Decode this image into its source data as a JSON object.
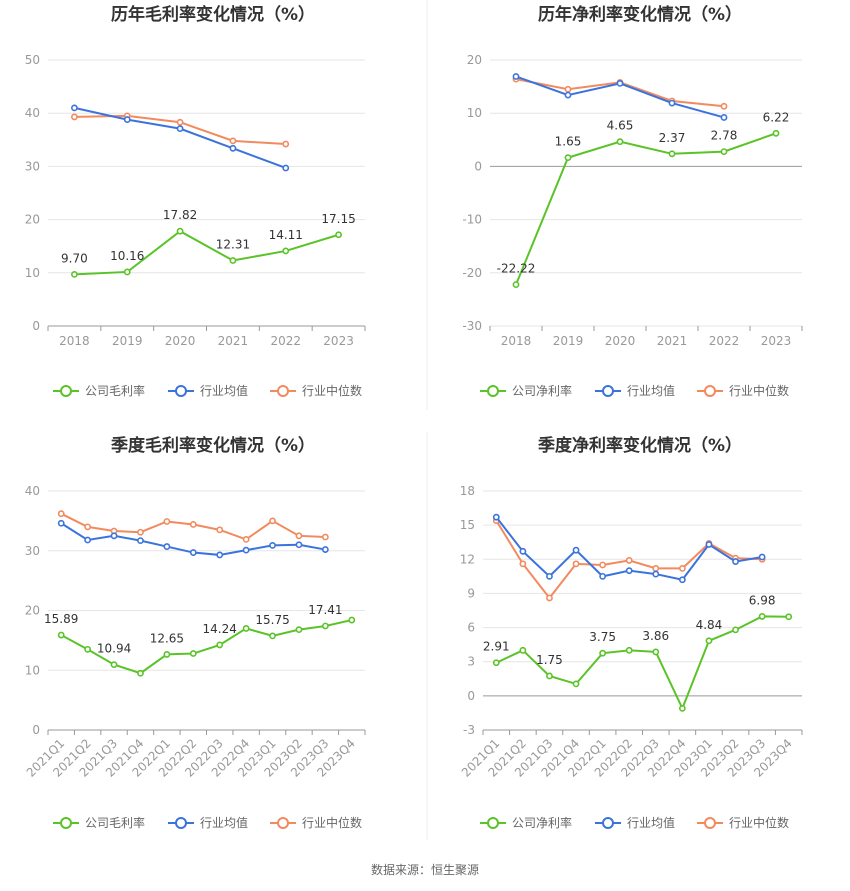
{
  "colors": {
    "company": "#5ac328",
    "industry_avg": "#3b73de",
    "industry_median": "#f28a5e",
    "grid": "#e6e6e6",
    "axis": "#cccccc"
  },
  "source_text": "数据来源：恒生聚源",
  "chart_data": [
    {
      "type": "line",
      "title": "历年毛利率变化情况（%）",
      "categories": [
        "2018",
        "2019",
        "2020",
        "2021",
        "2022",
        "2023"
      ],
      "ylim": [
        0,
        50
      ],
      "yticks": [
        0,
        10,
        20,
        30,
        40,
        50
      ],
      "legend_position": "bottom",
      "grid": true,
      "series": [
        {
          "name": "公司毛利率",
          "key": "company",
          "values": [
            9.7,
            10.16,
            17.82,
            12.31,
            14.11,
            17.15
          ],
          "labels": [
            "9.70",
            "10.16",
            "17.82",
            "12.31",
            "14.11",
            "17.15"
          ]
        },
        {
          "name": "行业均值",
          "key": "industry_avg",
          "values": [
            41.0,
            38.8,
            37.1,
            33.4,
            29.7,
            null
          ]
        },
        {
          "name": "行业中位数",
          "key": "industry_median",
          "values": [
            39.3,
            39.5,
            38.3,
            34.8,
            34.2,
            null
          ]
        }
      ]
    },
    {
      "type": "line",
      "title": "历年净利率变化情况（%）",
      "categories": [
        "2018",
        "2019",
        "2020",
        "2021",
        "2022",
        "2023"
      ],
      "ylim": [
        -30,
        20
      ],
      "yticks": [
        -30,
        -20,
        -10,
        0,
        10,
        20
      ],
      "legend_position": "bottom",
      "grid": true,
      "series": [
        {
          "name": "公司净利率",
          "key": "company",
          "values": [
            -22.22,
            1.65,
            4.65,
            2.37,
            2.78,
            6.22
          ],
          "labels": [
            "-22.22",
            "1.65",
            "4.65",
            "2.37",
            "2.78",
            "6.22"
          ]
        },
        {
          "name": "行业均值",
          "key": "industry_avg",
          "values": [
            16.9,
            13.4,
            15.6,
            11.9,
            9.2,
            null
          ]
        },
        {
          "name": "行业中位数",
          "key": "industry_median",
          "values": [
            16.4,
            14.5,
            15.8,
            12.3,
            11.3,
            null
          ]
        }
      ]
    },
    {
      "type": "line",
      "title": "季度毛利率变化情况（%）",
      "categories": [
        "2021Q1",
        "2021Q2",
        "2021Q3",
        "2021Q4",
        "2022Q1",
        "2022Q2",
        "2022Q3",
        "2022Q4",
        "2023Q1",
        "2023Q2",
        "2023Q3",
        "2023Q4"
      ],
      "ylim": [
        0,
        40
      ],
      "yticks": [
        0,
        10,
        20,
        30,
        40
      ],
      "legend_position": "bottom",
      "grid": true,
      "series": [
        {
          "name": "公司毛利率",
          "key": "company",
          "values": [
            15.89,
            13.5,
            10.94,
            9.5,
            12.65,
            12.8,
            14.24,
            17.0,
            15.75,
            16.8,
            17.41,
            18.4
          ],
          "labels": [
            "15.89",
            "",
            "10.94",
            "",
            "12.65",
            "",
            "14.24",
            "",
            "15.75",
            "",
            "17.41",
            ""
          ]
        },
        {
          "name": "行业均值",
          "key": "industry_avg",
          "values": [
            34.6,
            31.8,
            32.5,
            31.7,
            30.7,
            29.7,
            29.3,
            30.1,
            30.9,
            31.0,
            30.2,
            null
          ]
        },
        {
          "name": "行业中位数",
          "key": "industry_median",
          "values": [
            36.2,
            34.0,
            33.3,
            33.1,
            34.9,
            34.4,
            33.5,
            31.9,
            35.0,
            32.5,
            32.3,
            null
          ]
        }
      ]
    },
    {
      "type": "line",
      "title": "季度净利率变化情况（%）",
      "categories": [
        "2021Q1",
        "2021Q2",
        "2021Q3",
        "2021Q4",
        "2022Q1",
        "2022Q2",
        "2022Q3",
        "2022Q4",
        "2023Q1",
        "2023Q2",
        "2023Q3",
        "2023Q4"
      ],
      "ylim": [
        -3,
        18
      ],
      "yticks": [
        -3,
        0,
        3,
        6,
        9,
        12,
        15,
        18
      ],
      "legend_position": "bottom",
      "grid": true,
      "series": [
        {
          "name": "公司净利率",
          "key": "company",
          "values": [
            2.91,
            4.0,
            1.75,
            1.05,
            3.75,
            4.0,
            3.86,
            -1.1,
            4.84,
            5.8,
            6.98,
            6.95
          ],
          "labels": [
            "2.91",
            "",
            "1.75",
            "",
            "3.75",
            "",
            "3.86",
            "",
            "4.84",
            "",
            "6.98",
            ""
          ]
        },
        {
          "name": "行业均值",
          "key": "industry_avg",
          "values": [
            15.7,
            12.7,
            10.5,
            12.8,
            10.5,
            11.0,
            10.7,
            10.2,
            13.3,
            11.8,
            12.2,
            null
          ]
        },
        {
          "name": "行业中位数",
          "key": "industry_median",
          "values": [
            15.4,
            11.6,
            8.6,
            11.6,
            11.5,
            11.9,
            11.2,
            11.2,
            13.4,
            12.1,
            12.0,
            null
          ]
        }
      ]
    }
  ]
}
